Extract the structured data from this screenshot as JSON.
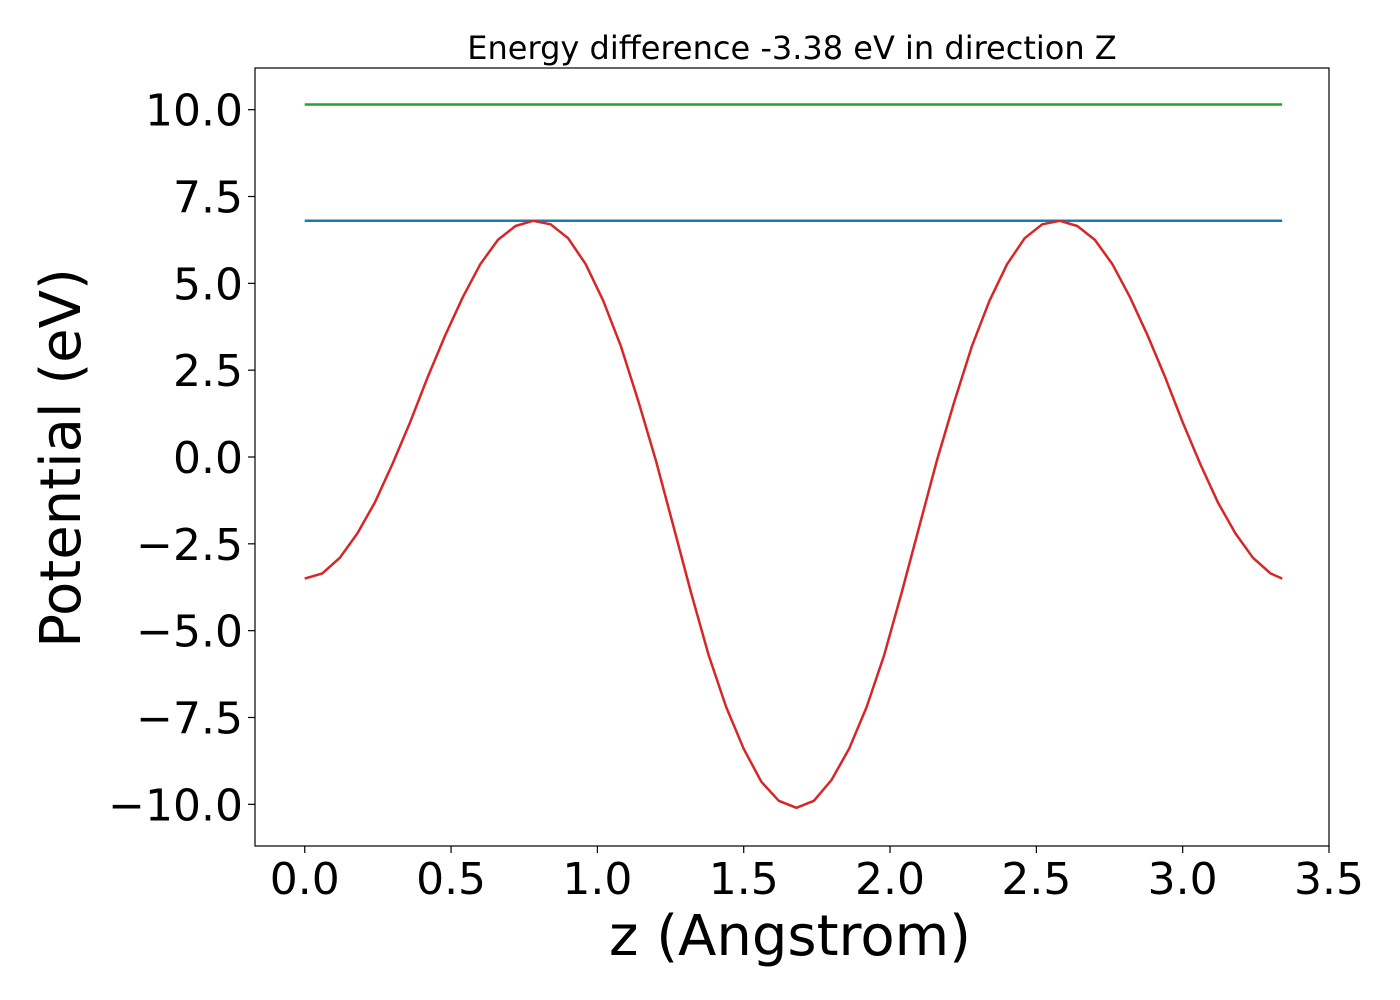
{
  "chart_data": {
    "type": "line",
    "title": "Energy difference -3.38 eV in direction Z",
    "xlabel": "z (Angstrom)",
    "ylabel": "Potential (eV)",
    "xlim": [
      -0.17,
      3.5
    ],
    "ylim": [
      -11.2,
      11.2
    ],
    "xticks": [
      0.0,
      0.5,
      1.0,
      1.5,
      2.0,
      2.5,
      3.0,
      3.5
    ],
    "xtick_labels": [
      "0.0",
      "0.5",
      "1.0",
      "1.5",
      "2.0",
      "2.5",
      "3.0",
      "3.5"
    ],
    "yticks": [
      10.0,
      7.5,
      5.0,
      2.5,
      0.0,
      -2.5,
      -5.0,
      -7.5,
      -10.0
    ],
    "ytick_labels": [
      "10.0",
      "7.5",
      "5.0",
      "2.5",
      "0.0",
      "−2.5",
      "−5.0",
      "−7.5",
      "−10.0"
    ],
    "grid": false,
    "series": [
      {
        "color": "#2ca02c",
        "x": [
          0.0,
          3.34
        ],
        "y": [
          10.15,
          10.15
        ]
      },
      {
        "color": "#1f77b4",
        "x": [
          0.0,
          3.34
        ],
        "y": [
          6.8,
          6.8
        ]
      },
      {
        "color": "#d62728",
        "x": [
          0.0,
          0.06,
          0.12,
          0.18,
          0.24,
          0.3,
          0.36,
          0.42,
          0.48,
          0.54,
          0.6,
          0.66,
          0.72,
          0.78,
          0.84,
          0.9,
          0.96,
          1.02,
          1.08,
          1.14,
          1.2,
          1.26,
          1.32,
          1.38,
          1.44,
          1.5,
          1.56,
          1.62,
          1.68,
          1.74,
          1.8,
          1.86,
          1.92,
          1.98,
          2.04,
          2.1,
          2.16,
          2.22,
          2.28,
          2.34,
          2.4,
          2.46,
          2.52,
          2.58,
          2.64,
          2.7,
          2.76,
          2.82,
          2.88,
          2.94,
          3.0,
          3.06,
          3.12,
          3.18,
          3.24,
          3.3,
          3.34
        ],
        "y": [
          -3.5,
          -3.35,
          -2.9,
          -2.2,
          -1.3,
          -0.2,
          1.0,
          2.3,
          3.5,
          4.6,
          5.55,
          6.25,
          6.65,
          6.8,
          6.7,
          6.3,
          5.55,
          4.5,
          3.2,
          1.6,
          -0.1,
          -2.0,
          -3.9,
          -5.7,
          -7.2,
          -8.4,
          -9.35,
          -9.9,
          -10.1,
          -9.9,
          -9.3,
          -8.4,
          -7.2,
          -5.7,
          -3.9,
          -2.0,
          -0.1,
          1.6,
          3.2,
          4.5,
          5.55,
          6.3,
          6.7,
          6.8,
          6.65,
          6.25,
          5.55,
          4.6,
          3.5,
          2.3,
          1.0,
          -0.2,
          -1.3,
          -2.2,
          -2.9,
          -3.35,
          -3.5
        ]
      }
    ]
  }
}
